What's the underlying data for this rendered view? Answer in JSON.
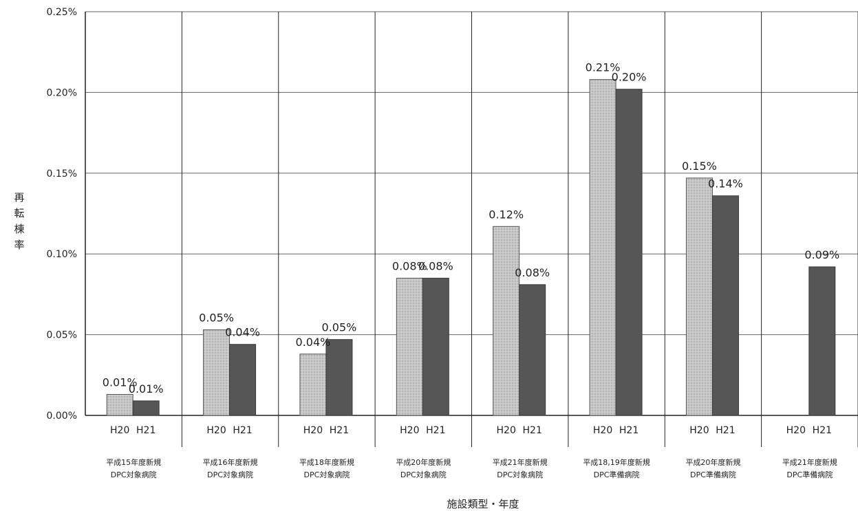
{
  "chart_data": {
    "type": "bar",
    "xlabel": "施設類型・年度",
    "ylabel": "再転棟率",
    "ylim": [
      0,
      0.25
    ],
    "yticks": [
      "0.00%",
      "0.05%",
      "0.10%",
      "0.15%",
      "0.20%",
      "0.25%"
    ],
    "grid": true,
    "sub_categories": [
      "H20",
      "H21"
    ],
    "categories": [
      [
        "平成15年度新規",
        "DPC対象病院"
      ],
      [
        "平成16年度新規",
        "DPC対象病院"
      ],
      [
        "平成18年度新規",
        "DPC対象病院"
      ],
      [
        "平成20年度新規",
        "DPC対象病院"
      ],
      [
        "平成21年度新規",
        "DPC対象病院"
      ],
      [
        "平成18,19年度新規",
        "DPC準備病院"
      ],
      [
        "平成20年度新規",
        "DPC準備病院"
      ],
      [
        "平成21年度新規",
        "DPC準備病院"
      ]
    ],
    "series": [
      {
        "values": [
          0.013,
          0.053,
          0.038,
          0.085,
          0.117,
          0.208,
          0.147,
          null
        ],
        "labels": [
          "0.01%",
          "0.05%",
          "0.04%",
          "0.08%",
          "0.12%",
          "0.21%",
          "0.15%",
          null
        ]
      },
      {
        "values": [
          0.009,
          0.044,
          0.047,
          0.085,
          0.081,
          0.202,
          0.136,
          0.092
        ],
        "labels": [
          "0.01%",
          "0.04%",
          "0.05%",
          "0.08%",
          "0.08%",
          "0.20%",
          "0.14%",
          "0.09%"
        ]
      }
    ]
  },
  "colors": {
    "h20_fill": "#c4c4c4",
    "h20_stroke": "#555555",
    "h21_fill": "#565656",
    "h21_stroke": "#3a3a3a",
    "grid": "#666666",
    "axis": "#222222"
  }
}
